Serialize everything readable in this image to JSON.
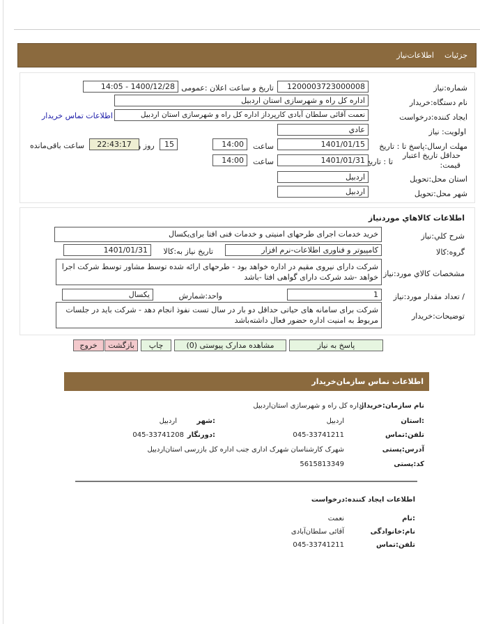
{
  "tabs": {
    "details": "جزئیات",
    "need_info": "اطلاعات‌نیاز"
  },
  "form": {
    "need_number_label": "شماره:نیاز",
    "need_number": "1200003723000008",
    "announce_label": "تاریخ و ساعت اعلان :عمومی",
    "announce_value": "1400/12/28 - 14:05",
    "buyer_org_label": "نام دستگاه:خریدار",
    "buyer_org": "اداره کل راه و شهرسازی استان اردبیل",
    "creator_label": "ایجاد کننده:درخواست",
    "creator": "نعمت آقائی سلطان آبادی کارپرداز اداره کل راه و شهرسازی استان اردبیل",
    "contact_link": "اطلاعات تماس خریدار",
    "priority_label": "اولویت: نیاز",
    "priority": "عادي",
    "deadline_label": "مهلت ارسال:پاسخ  تا : تاریخ",
    "deadline_date": "1401/01/15",
    "time_label": "ساعت",
    "deadline_time": "14:00",
    "days": "15",
    "days_label": "روز و",
    "remaining": "22:43:17",
    "remaining_label": "ساعت باقی‌مانده",
    "validity_label_1": "حداقل تاریخ اعتبار",
    "validity_label_2": "قیمت:",
    "validity_to": "تا : تاریخ",
    "validity_date": "1401/01/31",
    "validity_time": "14:00",
    "province_label": "استان محل:تحویل",
    "province": "اردبیل",
    "city_label": "شهر محل:تحویل",
    "city": "اردبیل"
  },
  "goods": {
    "title": "اطلاعات کالاهاي موردنياز",
    "desc_label": "شرح کلي:نیاز",
    "desc": "خرید خدمات اجرای طرحهای امنیتی و خدمات فنی افتا برای‌یکسال",
    "group_label": "گروه:کالا",
    "group": "کامپیوتر و فناوری اطلاعات-نرم افزار",
    "need_date_label": "تاریخ نیاز به:کالا",
    "need_date": "1401/01/31",
    "spec_label": "مشخصات کالاي مورد:نیاز",
    "spec": "شرکت دارای نیروی مقیم در اداره خواهد بود - طرحهای ارائه شده توسط مشاور توسط شرکت اجرا خواهد -شد شرکت دارای گواهی افتا -باشد",
    "qty_label": "/ تعداد مقدار مورد:نیاز",
    "qty": "1",
    "unit_label": "واحد:شمارش",
    "unit": "یکسال",
    "notes_label": "توضیحات:خریدار",
    "notes": "شرکت برای سامانه های حیاتی حداقل دو بار در سال تست نفوذ انجام دهد - شرکت باید در جلسات مربوط به امنیت اداره حضور فعال داشته‌باشد"
  },
  "buttons": {
    "reply": "پاسخ به نیاز",
    "docs": "مشاهده مدارک پیوستی (0)",
    "print": "چاپ",
    "back": "بازگشت",
    "exit": "خروج"
  },
  "contact": {
    "title": "اطلاعات  تماس  سازمان‌خریدار",
    "org_label": "نام سازمان:خریدار",
    "org": "اداره کل راه و شهرسازی استان‌اردبیل",
    "province_label": ":استان",
    "province": "اردبیل",
    "city_label": ":شهر",
    "city": "اردبیل",
    "phone_label": "تلفن:تماس",
    "phone": "045-33741211",
    "fax_label": ":دورنگار",
    "fax": "045-33741208",
    "address_label": "آدرس:پستی",
    "address": "شهرک کارشناسان شهرک اداری جنب اداره کل بازرسی استان‌اردبیل",
    "postal_label": "کد:پستی",
    "postal": "5615813349"
  },
  "creator": {
    "title": "اطلاعات ایجاد کننده:درخواست",
    "name_label": ":نام",
    "name": "نعمت",
    "family_label": "نام:خانوادگی",
    "family": "آقائی سلطان‌آبادی",
    "phone_label": "تلفن:تماس",
    "phone": "045-33741211"
  }
}
